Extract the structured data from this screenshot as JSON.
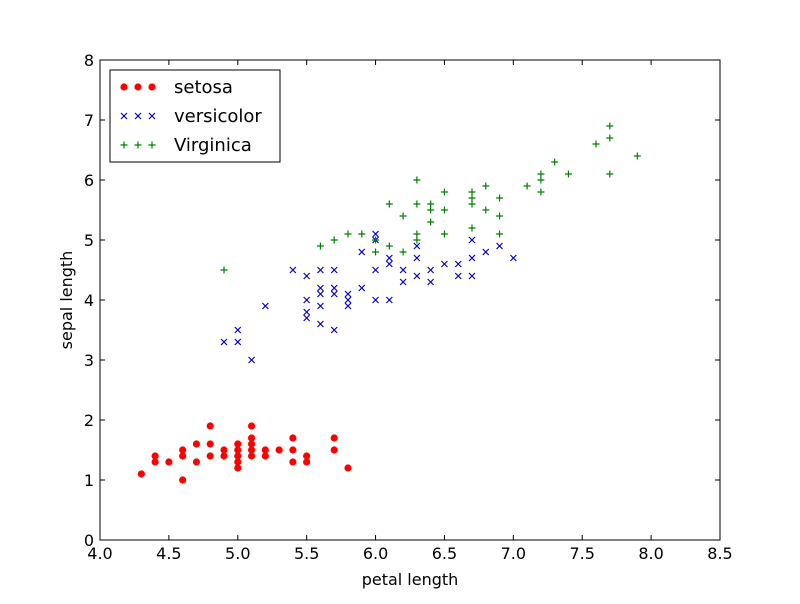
{
  "chart_data": {
    "type": "scatter",
    "title": "",
    "xlabel": "petal length",
    "ylabel": "sepal length",
    "xlim": [
      4.0,
      8.5
    ],
    "ylim": [
      0,
      8
    ],
    "x_ticks": [
      4.0,
      4.5,
      5.0,
      5.5,
      6.0,
      6.5,
      7.0,
      7.5,
      8.0,
      8.5
    ],
    "x_tick_labels": [
      "4.0",
      "4.5",
      "5.0",
      "5.5",
      "6.0",
      "6.5",
      "7.0",
      "7.5",
      "8.0",
      "8.5"
    ],
    "y_ticks": [
      0,
      1,
      2,
      3,
      4,
      5,
      6,
      7,
      8
    ],
    "y_tick_labels": [
      "0",
      "1",
      "2",
      "3",
      "4",
      "5",
      "6",
      "7",
      "8"
    ],
    "grid": false,
    "legend_position": "top-left",
    "series": [
      {
        "name": "setosa",
        "marker": "circle",
        "color": "#ff0000",
        "points": [
          [
            4.3,
            1.1
          ],
          [
            4.4,
            1.3
          ],
          [
            4.4,
            1.4
          ],
          [
            4.5,
            1.3
          ],
          [
            4.6,
            1.0
          ],
          [
            4.6,
            1.4
          ],
          [
            4.6,
            1.5
          ],
          [
            4.7,
            1.3
          ],
          [
            4.7,
            1.6
          ],
          [
            4.8,
            1.4
          ],
          [
            4.8,
            1.6
          ],
          [
            4.8,
            1.9
          ],
          [
            4.9,
            1.4
          ],
          [
            4.9,
            1.5
          ],
          [
            5.0,
            1.2
          ],
          [
            5.0,
            1.3
          ],
          [
            5.0,
            1.4
          ],
          [
            5.0,
            1.5
          ],
          [
            5.0,
            1.6
          ],
          [
            5.1,
            1.4
          ],
          [
            5.1,
            1.5
          ],
          [
            5.1,
            1.6
          ],
          [
            5.1,
            1.7
          ],
          [
            5.1,
            1.9
          ],
          [
            5.2,
            1.4
          ],
          [
            5.2,
            1.5
          ],
          [
            5.3,
            1.5
          ],
          [
            5.4,
            1.3
          ],
          [
            5.4,
            1.5
          ],
          [
            5.4,
            1.7
          ],
          [
            5.5,
            1.3
          ],
          [
            5.5,
            1.4
          ],
          [
            5.7,
            1.5
          ],
          [
            5.7,
            1.7
          ],
          [
            5.8,
            1.2
          ]
        ]
      },
      {
        "name": "versicolor",
        "marker": "x",
        "color": "#0000cc",
        "points": [
          [
            4.9,
            3.3
          ],
          [
            5.0,
            3.3
          ],
          [
            5.0,
            3.5
          ],
          [
            5.1,
            3.0
          ],
          [
            5.2,
            3.9
          ],
          [
            5.4,
            4.5
          ],
          [
            5.5,
            3.7
          ],
          [
            5.5,
            3.8
          ],
          [
            5.5,
            4.0
          ],
          [
            5.5,
            4.4
          ],
          [
            5.6,
            3.6
          ],
          [
            5.6,
            3.9
          ],
          [
            5.6,
            4.1
          ],
          [
            5.6,
            4.2
          ],
          [
            5.6,
            4.5
          ],
          [
            5.7,
            3.5
          ],
          [
            5.7,
            4.1
          ],
          [
            5.7,
            4.2
          ],
          [
            5.7,
            4.5
          ],
          [
            5.8,
            3.9
          ],
          [
            5.8,
            4.0
          ],
          [
            5.8,
            4.1
          ],
          [
            5.9,
            4.2
          ],
          [
            5.9,
            4.8
          ],
          [
            6.0,
            4.0
          ],
          [
            6.0,
            4.5
          ],
          [
            6.0,
            5.0
          ],
          [
            6.0,
            5.1
          ],
          [
            6.1,
            4.0
          ],
          [
            6.1,
            4.6
          ],
          [
            6.1,
            4.7
          ],
          [
            6.2,
            4.3
          ],
          [
            6.2,
            4.5
          ],
          [
            6.3,
            4.4
          ],
          [
            6.3,
            4.7
          ],
          [
            6.3,
            4.9
          ],
          [
            6.4,
            4.3
          ],
          [
            6.4,
            4.5
          ],
          [
            6.5,
            4.6
          ],
          [
            6.6,
            4.4
          ],
          [
            6.6,
            4.6
          ],
          [
            6.7,
            4.4
          ],
          [
            6.7,
            4.7
          ],
          [
            6.7,
            5.0
          ],
          [
            6.8,
            4.8
          ],
          [
            6.9,
            4.9
          ],
          [
            7.0,
            4.7
          ]
        ]
      },
      {
        "name": "Virginica",
        "marker": "plus",
        "color": "#008000",
        "points": [
          [
            4.9,
            4.5
          ],
          [
            5.6,
            4.9
          ],
          [
            5.7,
            5.0
          ],
          [
            5.8,
            5.1
          ],
          [
            5.9,
            5.1
          ],
          [
            6.0,
            4.8
          ],
          [
            6.0,
            5.0
          ],
          [
            6.1,
            4.9
          ],
          [
            6.1,
            5.6
          ],
          [
            6.2,
            4.8
          ],
          [
            6.2,
            5.4
          ],
          [
            6.3,
            5.0
          ],
          [
            6.3,
            5.1
          ],
          [
            6.3,
            5.6
          ],
          [
            6.3,
            6.0
          ],
          [
            6.4,
            5.3
          ],
          [
            6.4,
            5.5
          ],
          [
            6.4,
            5.6
          ],
          [
            6.5,
            5.1
          ],
          [
            6.5,
            5.5
          ],
          [
            6.5,
            5.8
          ],
          [
            6.7,
            5.2
          ],
          [
            6.7,
            5.6
          ],
          [
            6.7,
            5.7
          ],
          [
            6.7,
            5.8
          ],
          [
            6.8,
            5.5
          ],
          [
            6.8,
            5.9
          ],
          [
            6.9,
            5.1
          ],
          [
            6.9,
            5.4
          ],
          [
            6.9,
            5.7
          ],
          [
            7.1,
            5.9
          ],
          [
            7.2,
            5.8
          ],
          [
            7.2,
            6.0
          ],
          [
            7.2,
            6.1
          ],
          [
            7.3,
            6.3
          ],
          [
            7.4,
            6.1
          ],
          [
            7.6,
            6.6
          ],
          [
            7.7,
            6.1
          ],
          [
            7.7,
            6.7
          ],
          [
            7.7,
            6.9
          ],
          [
            7.9,
            6.4
          ]
        ]
      }
    ]
  }
}
